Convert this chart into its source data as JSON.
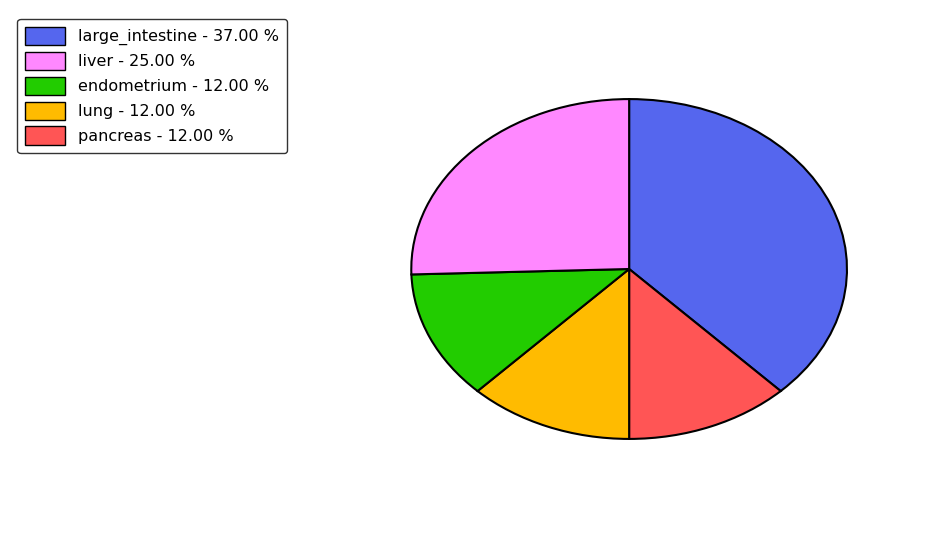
{
  "labels": [
    "large_intestine",
    "liver",
    "endometrium",
    "lung",
    "pancreas"
  ],
  "values": [
    37.0,
    25.0,
    12.0,
    12.0,
    12.0
  ],
  "colors": [
    "#5566ee",
    "#ff88ff",
    "#22cc00",
    "#ffbb00",
    "#ff5555"
  ],
  "legend_labels": [
    "large_intestine - 37.00 %",
    "liver - 25.00 %",
    "endometrium - 12.00 %",
    "lung - 12.00 %",
    "pancreas - 12.00 %"
  ],
  "background_color": "#ffffff",
  "wedge_order": [
    0,
    4,
    3,
    2,
    1
  ],
  "startangle": 90,
  "figsize": [
    9.39,
    5.38
  ],
  "dpi": 100
}
